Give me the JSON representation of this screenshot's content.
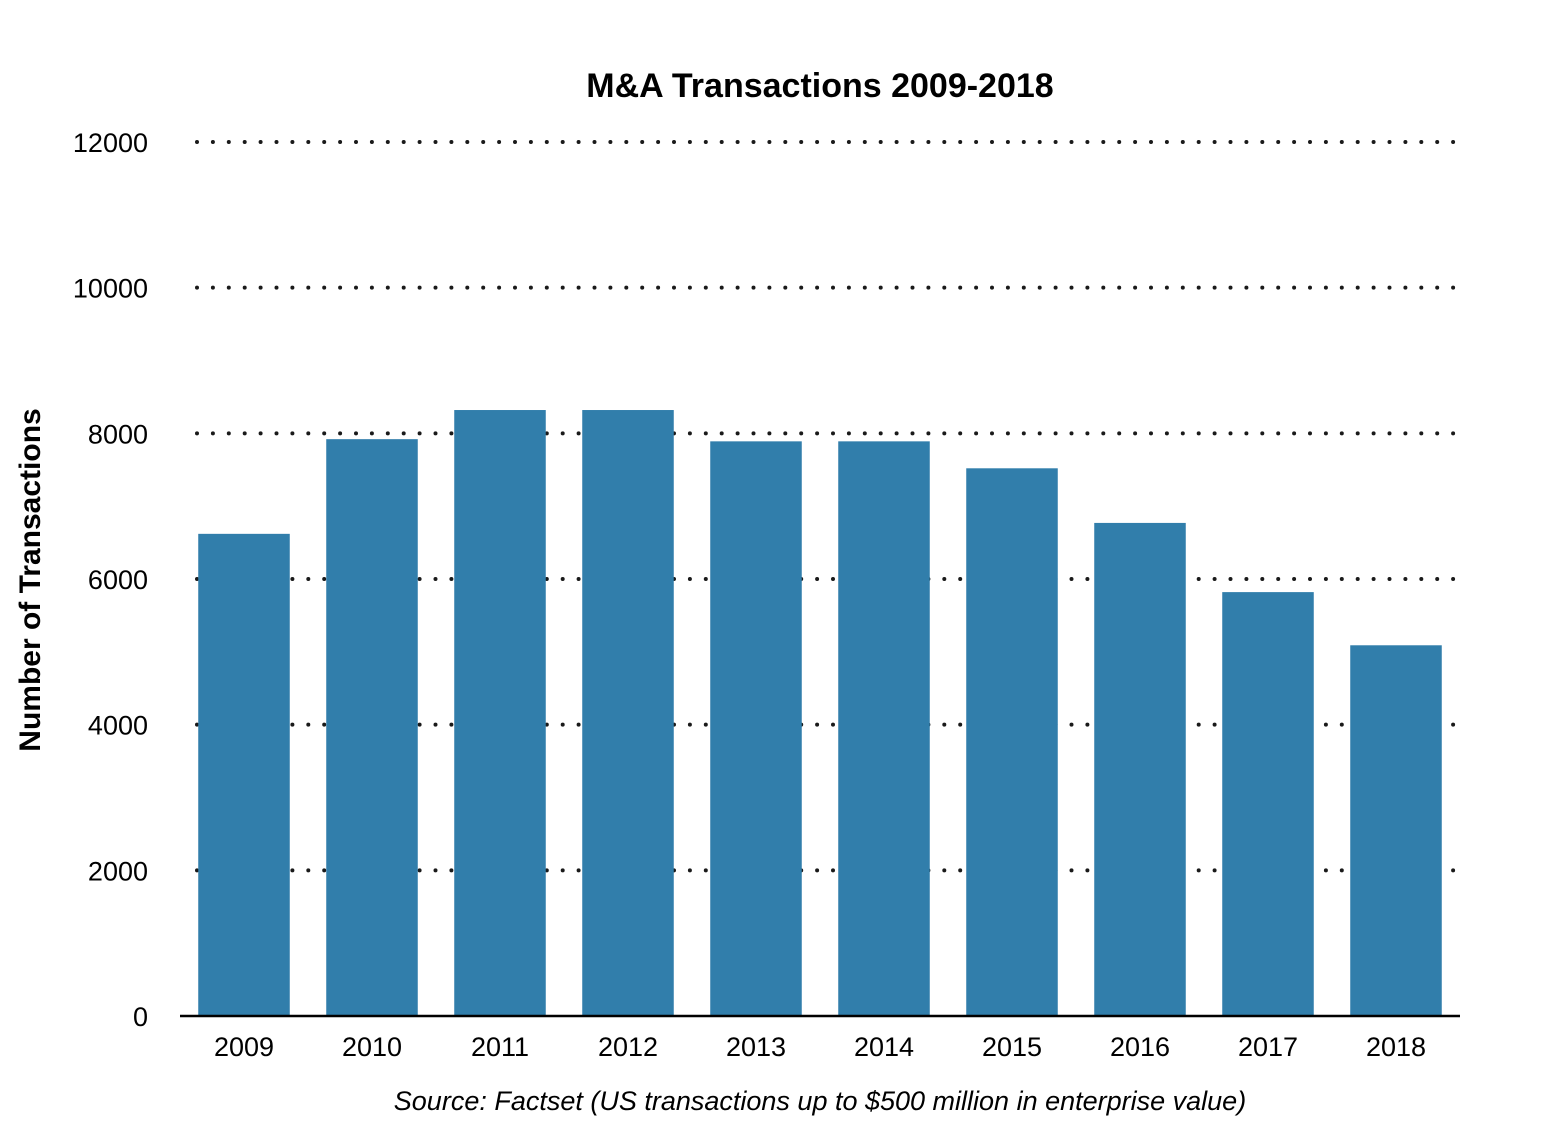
{
  "chart_data": {
    "type": "bar",
    "title": "M&A Transactions 2009-2018",
    "xlabel": "",
    "ylabel": "Number of Transactions",
    "source": "Source: Factset (US transactions up to $500 million in enterprise value)",
    "categories": [
      "2009",
      "2010",
      "2011",
      "2012",
      "2013",
      "2014",
      "2015",
      "2016",
      "2017",
      "2018"
    ],
    "values": [
      6620,
      7920,
      8320,
      8320,
      7890,
      7890,
      7520,
      6770,
      5820,
      5090
    ],
    "ylim": [
      0,
      12000
    ],
    "yticks": [
      0,
      2000,
      4000,
      6000,
      8000,
      10000,
      12000
    ],
    "grid": true,
    "colors": {
      "bar": "#317eab",
      "grid": "#1a1a1a",
      "axis": "#000000"
    }
  }
}
